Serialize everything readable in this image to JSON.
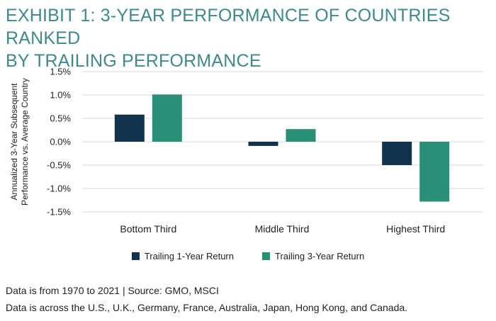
{
  "title_line1": "EXHIBIT 1: 3-YEAR PERFORMANCE OF COUNTRIES RANKED",
  "title_line2": "BY TRAILING PERFORMANCE",
  "notes": [
    "Data is from 1970 to 2021 | Source: GMO, MSCI",
    "Data is across the U.S., U.K., Germany, France, Australia, Japan, Hong Kong, and Canada."
  ],
  "colors": {
    "title": "#3a8a8e",
    "series1": "#12334d",
    "series2": "#2a8f78",
    "grid": "#d9d9d9"
  },
  "chart_data": {
    "type": "bar",
    "title": "",
    "xlabel": "",
    "ylabel_lines": [
      "Annualized 3-Year Subsequent",
      "Performance vs. Average Country"
    ],
    "ylim": [
      -1.5,
      1.5
    ],
    "yticks": [
      1.5,
      1.0,
      0.5,
      0.0,
      -0.5,
      -1.0,
      -1.5
    ],
    "ytick_labels": [
      "1.5%",
      "1.0%",
      "0.5%",
      "0.0%",
      "-0.5%",
      "-1.0%",
      "-1.5%"
    ],
    "grid": true,
    "legend_position": "bottom",
    "categories": [
      "Bottom Third",
      "Middle Third",
      "Highest Third"
    ],
    "series": [
      {
        "name": "Trailing 1-Year Return",
        "values": [
          0.58,
          -0.09,
          -0.5
        ]
      },
      {
        "name": "Trailing 3-Year Return",
        "values": [
          1.01,
          0.27,
          -1.28
        ]
      }
    ]
  }
}
